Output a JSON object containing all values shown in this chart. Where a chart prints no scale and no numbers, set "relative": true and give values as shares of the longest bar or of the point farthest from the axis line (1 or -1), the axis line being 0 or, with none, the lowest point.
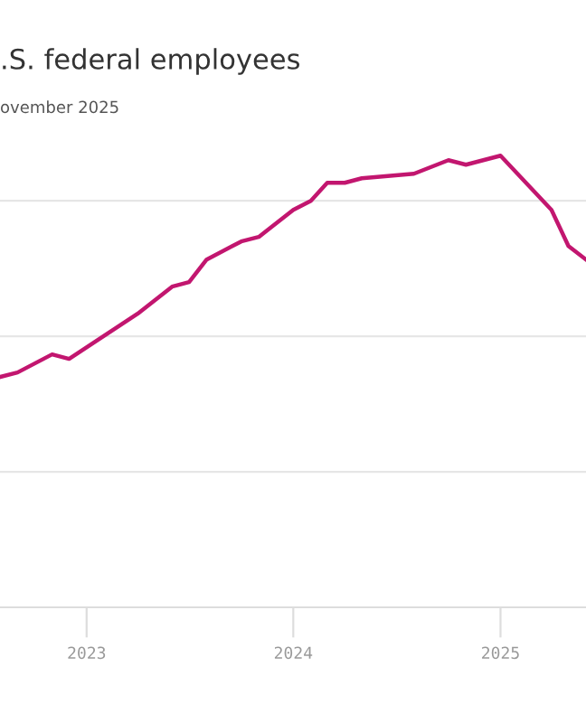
{
  "chart_data": {
    "type": "line",
    "title": ".S. federal employees",
    "subtitle": "ovember 2025",
    "relative": true,
    "x": [
      "2022-08",
      "2022-09",
      "2022-11",
      "2022-12",
      "2023-04",
      "2023-06",
      "2023-07",
      "2023-08",
      "2023-10",
      "2023-11",
      "2024-01",
      "2024-02",
      "2024-03",
      "2024-04",
      "2024-05",
      "2024-08",
      "2024-10",
      "2024-11",
      "2025-01",
      "2025-04",
      "2025-05",
      "2025-06"
    ],
    "series": [
      {
        "color": "#c2166f",
        "values": [
          0.51,
          0.52,
          0.56,
          0.55,
          0.65,
          0.71,
          0.72,
          0.77,
          0.81,
          0.82,
          0.88,
          0.9,
          0.94,
          0.94,
          0.95,
          0.96,
          0.99,
          0.98,
          1,
          0.88,
          0.8,
          0.77
        ]
      }
    ],
    "xlim": [
      "2022-08",
      "2025-06"
    ],
    "xticks": [
      "2023",
      "2024",
      "2025"
    ],
    "grid": "y",
    "tick_labels": "x",
    "marker": "none",
    "line_style": "solid"
  }
}
